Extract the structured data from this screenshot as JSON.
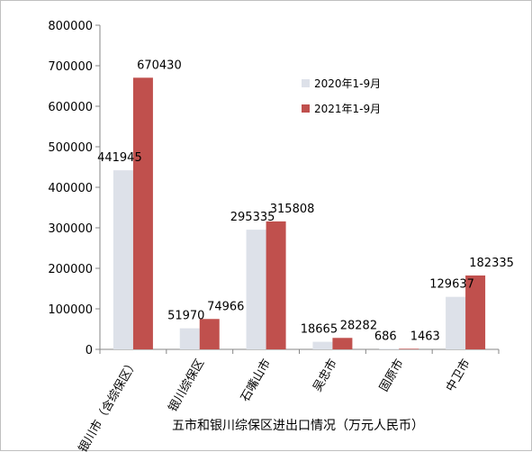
{
  "chart_data": {
    "type": "bar",
    "title": "",
    "xlabel": "五市和银川综保区进出口情况（万元人民币）",
    "ylabel": "",
    "ylim": [
      0,
      800000
    ],
    "yticks": [
      0,
      100000,
      200000,
      300000,
      400000,
      500000,
      600000,
      700000,
      800000
    ],
    "grid": false,
    "legend_position": "top-right",
    "categories": [
      "银川市（含综保区）",
      "银川综保区",
      "石嘴山市",
      "吴忠市",
      "固原市",
      "中卫市"
    ],
    "series": [
      {
        "name": "2020年1-9月",
        "color": "#dde1e9",
        "values": [
          441945,
          51970,
          295335,
          18665,
          686,
          129637
        ]
      },
      {
        "name": "2021年1-9月",
        "color": "#c0504d",
        "values": [
          670430,
          74966,
          315808,
          28282,
          1463,
          182335
        ]
      }
    ]
  }
}
